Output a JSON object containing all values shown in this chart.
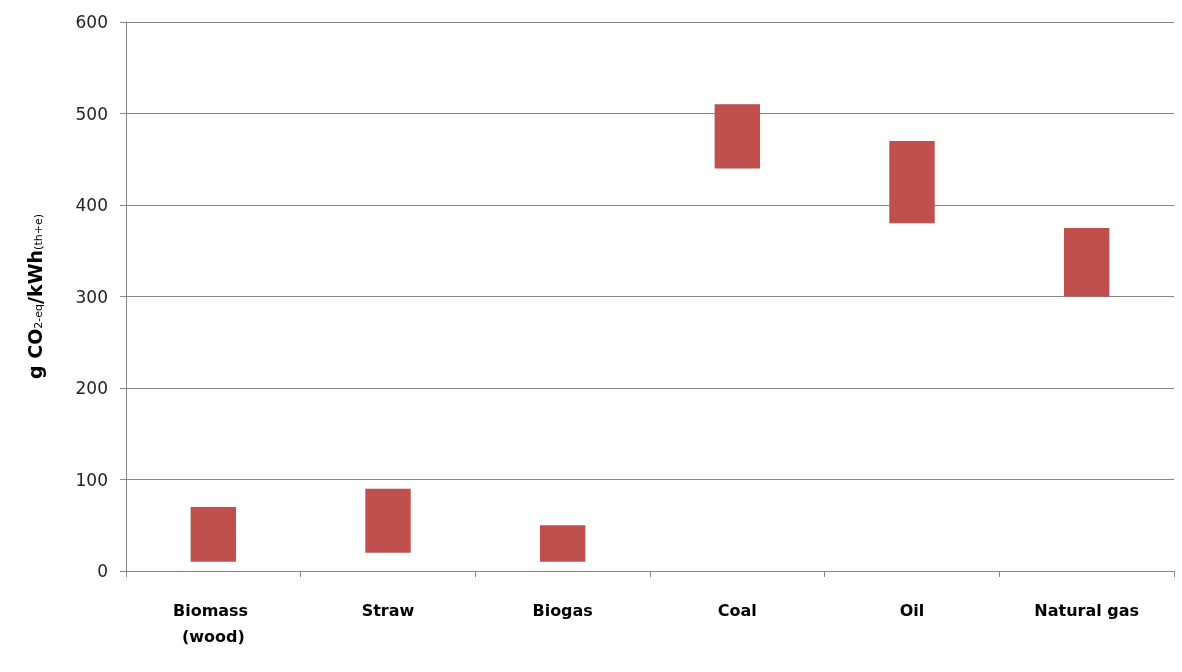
{
  "chart_data": {
    "type": "bar",
    "ylabel": "g CO$_{2-eq}$/kWh$_{(th+e)}$",
    "categories": [
      "Biomass (wood)",
      "Straw",
      "Biogas",
      "Coal",
      "Oil",
      "Natural gas"
    ],
    "base": [
      10,
      20,
      10,
      440,
      380,
      300
    ],
    "values": [
      60,
      70,
      40,
      70,
      90,
      75
    ],
    "color": "#c0504d",
    "ylim": [
      0,
      600
    ],
    "yticks": [
      0,
      100,
      200,
      300,
      400,
      500,
      600
    ],
    "grid": "y"
  }
}
